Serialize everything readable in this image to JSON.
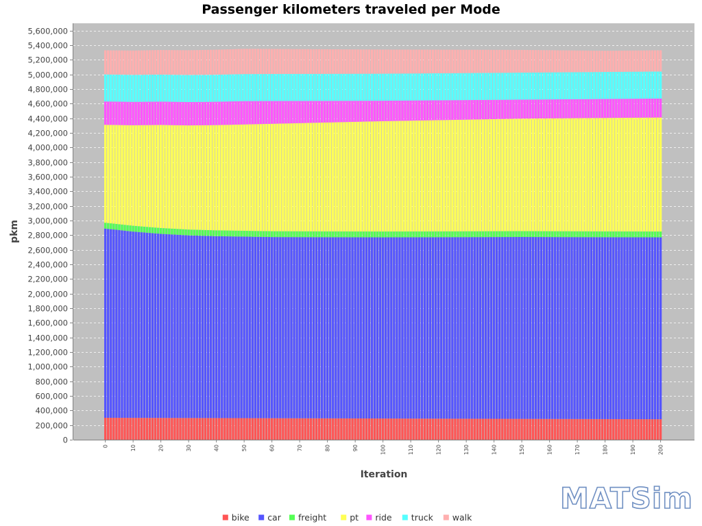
{
  "logo": {
    "text": "MATSim"
  },
  "chart_data": {
    "type": "bar",
    "stacked": true,
    "title": "Passenger kilometers traveled per Mode",
    "xlabel": "Iteration",
    "ylabel": "pkm",
    "ylim": [
      0,
      5700000
    ],
    "yticks": [
      0,
      200000,
      400000,
      600000,
      800000,
      1000000,
      1200000,
      1400000,
      1600000,
      1800000,
      2000000,
      2200000,
      2400000,
      2600000,
      2800000,
      3000000,
      3200000,
      3400000,
      3600000,
      3800000,
      4000000,
      4200000,
      4400000,
      4600000,
      4800000,
      5000000,
      5200000,
      5400000,
      5600000
    ],
    "ytick_labels": [
      "0",
      "200,000",
      "400,000",
      "600,000",
      "800,000",
      "1,000,000",
      "1,200,000",
      "1,400,000",
      "1,600,000",
      "1,800,000",
      "2,000,000",
      "2,200,000",
      "2,400,000",
      "2,600,000",
      "2,800,000",
      "3,000,000",
      "3,200,000",
      "3,400,000",
      "3,600,000",
      "3,800,000",
      "4,000,000",
      "4,200,000",
      "4,400,000",
      "4,600,000",
      "4,800,000",
      "5,000,000",
      "5,200,000",
      "5,400,000",
      "5,600,000"
    ],
    "x_range": [
      0,
      200
    ],
    "x_tick_step": 10,
    "grid": true,
    "legend_position": "bottom",
    "series": [
      {
        "name": "bike",
        "color": "#ff5555",
        "keyframes": [
          [
            0,
            300000
          ],
          [
            50,
            295000
          ],
          [
            100,
            290000
          ],
          [
            150,
            285000
          ],
          [
            200,
            280000
          ]
        ]
      },
      {
        "name": "car",
        "color": "#5555ff",
        "keyframes": [
          [
            0,
            2590000
          ],
          [
            10,
            2550000
          ],
          [
            20,
            2520000
          ],
          [
            30,
            2500000
          ],
          [
            40,
            2490000
          ],
          [
            60,
            2480000
          ],
          [
            100,
            2480000
          ],
          [
            150,
            2490000
          ],
          [
            200,
            2490000
          ]
        ]
      },
      {
        "name": "freight",
        "color": "#55ff55",
        "keyframes": [
          [
            0,
            80000
          ],
          [
            200,
            80000
          ]
        ]
      },
      {
        "name": "pt",
        "color": "#ffff55",
        "keyframes": [
          [
            0,
            1340000
          ],
          [
            20,
            1410000
          ],
          [
            40,
            1440000
          ],
          [
            60,
            1470000
          ],
          [
            80,
            1490000
          ],
          [
            100,
            1510000
          ],
          [
            150,
            1540000
          ],
          [
            200,
            1560000
          ]
        ]
      },
      {
        "name": "ride",
        "color": "#ff55ff",
        "keyframes": [
          [
            0,
            320000
          ],
          [
            50,
            320000
          ],
          [
            100,
            280000
          ],
          [
            150,
            260000
          ],
          [
            200,
            260000
          ]
        ]
      },
      {
        "name": "truck",
        "color": "#55ffff",
        "keyframes": [
          [
            0,
            370000
          ],
          [
            50,
            370000
          ],
          [
            100,
            370000
          ],
          [
            150,
            370000
          ],
          [
            200,
            370000
          ]
        ]
      },
      {
        "name": "walk",
        "color": "#ffafaf",
        "keyframes": [
          [
            0,
            330000
          ],
          [
            50,
            345000
          ],
          [
            100,
            330000
          ],
          [
            150,
            310000
          ],
          [
            180,
            290000
          ],
          [
            200,
            290000
          ]
        ]
      }
    ]
  }
}
